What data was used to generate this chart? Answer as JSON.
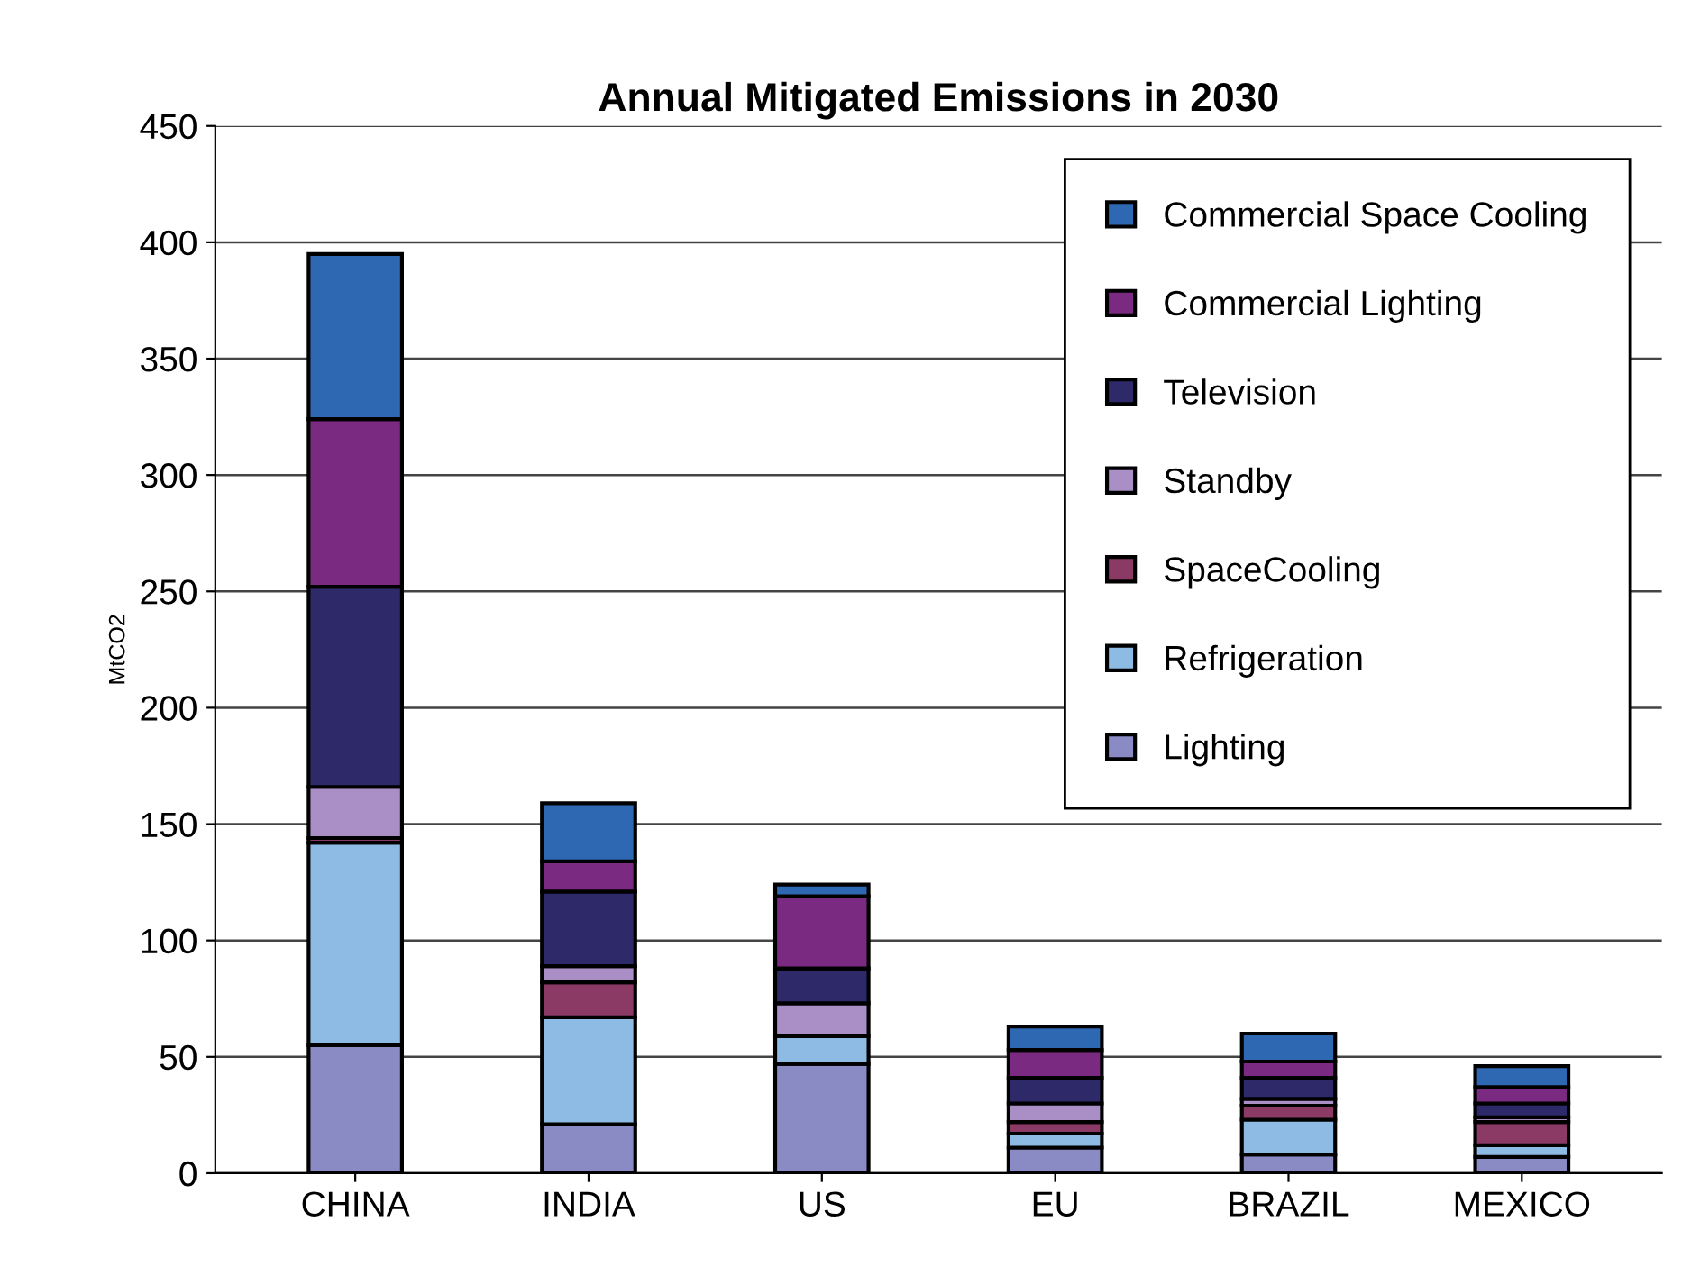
{
  "chart_data": {
    "type": "bar",
    "title": "Annual Mitigated Emissions in 2030",
    "ylabel": "MtCO2",
    "categories": [
      "CHINA",
      "INDIA",
      "US",
      "EU",
      "BRAZIL",
      "MEXICO"
    ],
    "stacked": true,
    "ylim": [
      0,
      450
    ],
    "yticks": [
      0,
      50,
      100,
      150,
      200,
      250,
      300,
      350,
      400,
      450
    ],
    "grid": "y",
    "legend": "top right",
    "series": [
      {
        "name": "Lighting",
        "color": "#8a8ac4",
        "values": [
          55,
          21,
          47,
          11,
          8,
          7
        ]
      },
      {
        "name": "Refrigeration",
        "color": "#8dbbe3",
        "values": [
          87,
          46,
          12,
          6,
          15,
          5
        ]
      },
      {
        "name": "SpaceCooling",
        "color": "#8b3a66",
        "values": [
          2,
          15,
          0,
          5,
          6,
          10
        ]
      },
      {
        "name": "Standby",
        "color": "#aa8fc6",
        "values": [
          22,
          7,
          14,
          8,
          3,
          2
        ]
      },
      {
        "name": "Television",
        "color": "#2e2a6a",
        "values": [
          86,
          32,
          15,
          11,
          9,
          6
        ]
      },
      {
        "name": "Commercial Lighting",
        "color": "#7a2a80",
        "values": [
          72,
          13,
          31,
          12,
          7,
          7
        ]
      },
      {
        "name": "Commercial Space Cooling",
        "color": "#2f68b2",
        "values": [
          71,
          25,
          5,
          10,
          12,
          9
        ]
      }
    ]
  }
}
